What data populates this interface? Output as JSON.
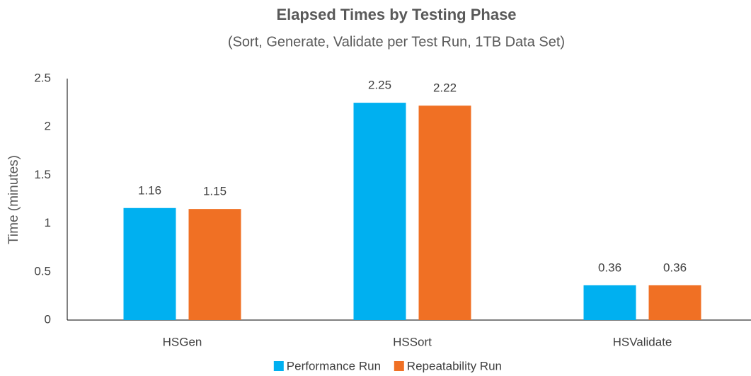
{
  "chart_data": {
    "type": "bar",
    "title": "Elapsed Times by Testing Phase",
    "subtitle": "(Sort, Generate, Validate per Test Run, 1TB Data Set)",
    "y_label": "Time (minutes)",
    "categories": [
      "HSGen",
      "HSSort",
      "HSValidate"
    ],
    "series": [
      {
        "name": "Performance Run",
        "color": "#00b0f0",
        "values": [
          1.16,
          2.25,
          0.36
        ]
      },
      {
        "name": "Repeatability Run",
        "color": "#f07024",
        "values": [
          1.15,
          2.22,
          0.36
        ]
      }
    ],
    "ylim": [
      0,
      2.5
    ],
    "yticks": [
      0,
      0.5,
      1,
      1.5,
      2,
      2.5
    ],
    "grid": false,
    "legend": "bottom"
  }
}
